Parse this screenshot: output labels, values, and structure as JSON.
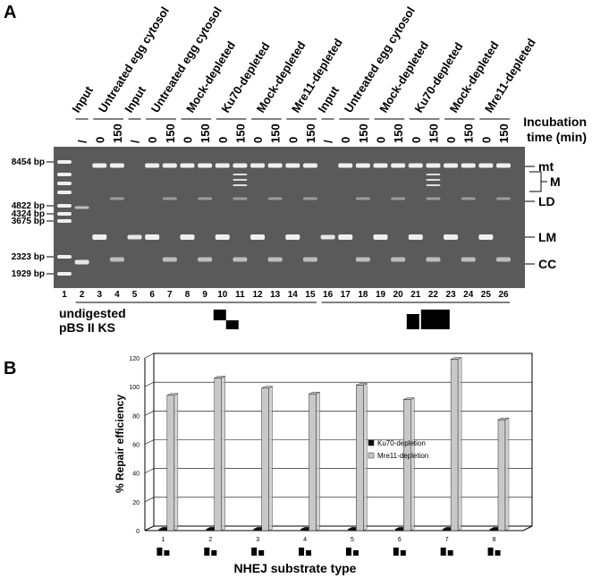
{
  "panel_a": {
    "label": "A",
    "lane_headers": [
      {
        "text": "Input",
        "lanes": [
          2,
          2
        ]
      },
      {
        "text": "Untreated egg cytosol",
        "lanes": [
          3,
          4
        ]
      },
      {
        "text": "Input",
        "lanes": [
          5,
          5
        ]
      },
      {
        "text": "Untreated egg cytosol",
        "lanes": [
          6,
          7
        ]
      },
      {
        "text": "Mock-depleted",
        "lanes": [
          8,
          9
        ]
      },
      {
        "text": "Ku70-depleted",
        "lanes": [
          10,
          11
        ]
      },
      {
        "text": "Mock-depleted",
        "lanes": [
          12,
          13
        ]
      },
      {
        "text": "Mre11-depleted",
        "lanes": [
          14,
          15
        ]
      },
      {
        "text": "Input",
        "lanes": [
          16,
          16
        ]
      },
      {
        "text": "Untreated egg cytosol",
        "lanes": [
          17,
          18
        ]
      },
      {
        "text": "Mock-depleted",
        "lanes": [
          19,
          20
        ]
      },
      {
        "text": "Ku70-depleted",
        "lanes": [
          21,
          22
        ]
      },
      {
        "text": "Mock-depleted",
        "lanes": [
          23,
          24
        ]
      },
      {
        "text": "Mre11-depleted",
        "lanes": [
          25,
          26
        ]
      }
    ],
    "times": [
      "/",
      "0",
      "150",
      "/",
      "0",
      "150",
      "0",
      "150",
      "0",
      "150",
      "0",
      "150",
      "0",
      "150",
      "/",
      "0",
      "150",
      "0",
      "150",
      "0",
      "150",
      "0",
      "150",
      "0",
      "150"
    ],
    "time_label": [
      "Incubation",
      "time (min)"
    ],
    "ladder": [
      "8454 bp",
      "4822 bp",
      "4324 bp",
      "3675 bp",
      "2323 bp",
      "1929 bp"
    ],
    "band_labels": [
      "mt",
      "M",
      "LD",
      "LM",
      "CC"
    ],
    "lanes": [
      "1",
      "2",
      "3",
      "4",
      "5",
      "6",
      "7",
      "8",
      "9",
      "10",
      "11",
      "12",
      "13",
      "14",
      "15",
      "16",
      "17",
      "18",
      "19",
      "20",
      "21",
      "22",
      "23",
      "24",
      "25",
      "26"
    ],
    "substrate_label": [
      "undigested",
      "pBS II KS"
    ]
  },
  "panel_b_label": "B",
  "chart_data": {
    "type": "bar",
    "ylabel": "% Repair efficiency",
    "xlabel": "NHEJ substrate type",
    "categories": [
      "1",
      "2",
      "3",
      "4",
      "5",
      "6",
      "7",
      "8"
    ],
    "series": [
      {
        "name": "Ku70-depletion",
        "color": "#111111",
        "values": [
          1,
          1,
          1,
          1,
          1,
          1,
          1,
          1
        ]
      },
      {
        "name": "Mre11-depletion",
        "color": "#c8c8c8",
        "values": [
          94,
          106,
          99,
          95,
          101,
          91,
          119,
          77
        ]
      }
    ],
    "ylim": [
      0,
      120
    ],
    "yticks": [
      0,
      20,
      40,
      60,
      80,
      100,
      120
    ],
    "grid": true,
    "legend": "right"
  }
}
